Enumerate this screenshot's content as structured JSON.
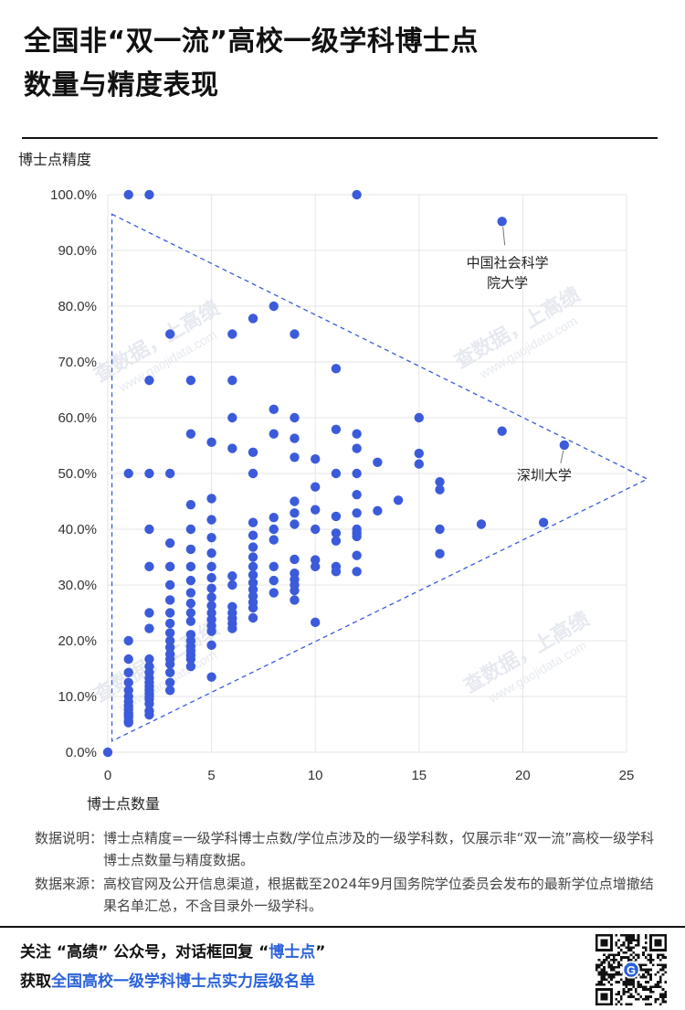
{
  "title": {
    "line1": "全国非“双一流”高校一级学科博士点",
    "line2": "数量与精度表现"
  },
  "notes": {
    "desc_label": "数据说明：",
    "desc_text": "博士点精度=一级学科博士点数/学位点涉及的一级学科数，仅展示非“双一流”高校一级学科博士点数量与精度数据。",
    "source_label": "数据来源：",
    "source_text": "高校官网及公开信息渠道，根据截至2024年9月国务院学位委员会发布的最新学位点增撤结果名单汇总，不含目录外一级学科。"
  },
  "footer": {
    "line1_a": "关注 “高绩” 公众号，对话框回复 “",
    "line1_b": "博士点",
    "line1_c": "”",
    "line2_a": "获取",
    "line2_b": "全国高校一级学科博士点实力层级名单"
  },
  "colors": {
    "point": "#3b5bdb",
    "accent": "#2b62d9",
    "grid": "#e6e6e6",
    "triangle": "#3b5bdb"
  },
  "chart_data": {
    "type": "scatter",
    "xlabel": "博士点数量",
    "ylabel": "博士点精度",
    "xlim": [
      0,
      25
    ],
    "ylim": [
      0,
      100
    ],
    "x_ticks": [
      "0",
      "5",
      "10",
      "15",
      "20",
      "25"
    ],
    "y_ticks": [
      "0.0%",
      "10.0%",
      "20.0%",
      "30.0%",
      "40.0%",
      "50.0%",
      "60.0%",
      "70.0%",
      "80.0%",
      "90.0%",
      "100.0%"
    ],
    "grid": true,
    "watermark": [
      "查数据，上高绩",
      "www.gaojidata.com"
    ],
    "reference_triangle": [
      [
        0.2,
        96.5
      ],
      [
        26,
        49
      ],
      [
        0.2,
        2
      ]
    ],
    "annotations": [
      {
        "text": "中国社会科学院大学",
        "lines": [
          "中国社会科学",
          "院大学"
        ],
        "x": 19,
        "y": 95.2
      },
      {
        "text": "深圳大学",
        "lines": [
          "深圳大学"
        ],
        "x": 22,
        "y": 55.1
      }
    ],
    "series": [
      {
        "points": [
          [
            0,
            0
          ],
          [
            1,
            100
          ],
          [
            1,
            50
          ],
          [
            1,
            20
          ],
          [
            1,
            16.7
          ],
          [
            1,
            14.3
          ],
          [
            1,
            12.5
          ],
          [
            1,
            11.1
          ],
          [
            1,
            10
          ],
          [
            1,
            9.1
          ],
          [
            1,
            8.3
          ],
          [
            1,
            7.7
          ],
          [
            1,
            7.1
          ],
          [
            1,
            6.7
          ],
          [
            1,
            6.3
          ],
          [
            1,
            5.6
          ],
          [
            1,
            5.3
          ],
          [
            2,
            100
          ],
          [
            2,
            66.7
          ],
          [
            2,
            50
          ],
          [
            2,
            40
          ],
          [
            2,
            33.3
          ],
          [
            2,
            25
          ],
          [
            2,
            22.2
          ],
          [
            2,
            16.7
          ],
          [
            2,
            15.4
          ],
          [
            2,
            14.3
          ],
          [
            2,
            13.3
          ],
          [
            2,
            12.5
          ],
          [
            2,
            11.8
          ],
          [
            2,
            11.1
          ],
          [
            2,
            10.5
          ],
          [
            2,
            10
          ],
          [
            2,
            9.5
          ],
          [
            2,
            8.7
          ],
          [
            2,
            7.4
          ],
          [
            2,
            6.7
          ],
          [
            3,
            75
          ],
          [
            3,
            50
          ],
          [
            3,
            37.5
          ],
          [
            3,
            33.3
          ],
          [
            3,
            30
          ],
          [
            3,
            27.3
          ],
          [
            3,
            25
          ],
          [
            3,
            23.1
          ],
          [
            3,
            21.4
          ],
          [
            3,
            20
          ],
          [
            3,
            18.8
          ],
          [
            3,
            17.6
          ],
          [
            3,
            16.7
          ],
          [
            3,
            15.8
          ],
          [
            3,
            14.3
          ],
          [
            3,
            12.5
          ],
          [
            3,
            11.1
          ],
          [
            4,
            66.7
          ],
          [
            4,
            57.1
          ],
          [
            4,
            44.4
          ],
          [
            4,
            40
          ],
          [
            4,
            36.4
          ],
          [
            4,
            33.3
          ],
          [
            4,
            30.8
          ],
          [
            4,
            28.6
          ],
          [
            4,
            26.7
          ],
          [
            4,
            25
          ],
          [
            4,
            23.5
          ],
          [
            4,
            21.1
          ],
          [
            4,
            20
          ],
          [
            4,
            19
          ],
          [
            4,
            18.2
          ],
          [
            4,
            17.4
          ],
          [
            4,
            16.7
          ],
          [
            4,
            15.4
          ],
          [
            5,
            55.6
          ],
          [
            5,
            45.5
          ],
          [
            5,
            41.7
          ],
          [
            5,
            38.5
          ],
          [
            5,
            35.7
          ],
          [
            5,
            33.3
          ],
          [
            5,
            31.3
          ],
          [
            5,
            29.4
          ],
          [
            5,
            27.8
          ],
          [
            5,
            26.3
          ],
          [
            5,
            25
          ],
          [
            5,
            23.8
          ],
          [
            5,
            22.7
          ],
          [
            5,
            21.7
          ],
          [
            5,
            19.2
          ],
          [
            5,
            13.5
          ],
          [
            6,
            75
          ],
          [
            6,
            66.7
          ],
          [
            6,
            60
          ],
          [
            6,
            54.5
          ],
          [
            6,
            31.6
          ],
          [
            6,
            30
          ],
          [
            6,
            26.1
          ],
          [
            6,
            25
          ],
          [
            6,
            24
          ],
          [
            6,
            23.1
          ],
          [
            6,
            22.2
          ],
          [
            7,
            77.8
          ],
          [
            7,
            53.8
          ],
          [
            7,
            50
          ],
          [
            7,
            41.2
          ],
          [
            7,
            38.9
          ],
          [
            7,
            36.8
          ],
          [
            7,
            35
          ],
          [
            7,
            33.3
          ],
          [
            7,
            31.8
          ],
          [
            7,
            30.4
          ],
          [
            7,
            29.2
          ],
          [
            7,
            28
          ],
          [
            7,
            26.9
          ],
          [
            7,
            25.9
          ],
          [
            7,
            24.1
          ],
          [
            8,
            80
          ],
          [
            8,
            61.5
          ],
          [
            8,
            57.1
          ],
          [
            8,
            42.1
          ],
          [
            8,
            40
          ],
          [
            8,
            38.1
          ],
          [
            8,
            33.3
          ],
          [
            8,
            30.8
          ],
          [
            8,
            28.6
          ],
          [
            9,
            75
          ],
          [
            9,
            60
          ],
          [
            9,
            56.3
          ],
          [
            9,
            52.9
          ],
          [
            9,
            45
          ],
          [
            9,
            42.9
          ],
          [
            9,
            40.9
          ],
          [
            9,
            34.6
          ],
          [
            9,
            32.1
          ],
          [
            9,
            31
          ],
          [
            9,
            30
          ],
          [
            9,
            29
          ],
          [
            9,
            27.3
          ],
          [
            10,
            52.6
          ],
          [
            10,
            47.6
          ],
          [
            10,
            43.5
          ],
          [
            10,
            40
          ],
          [
            10,
            34.5
          ],
          [
            10,
            33.3
          ],
          [
            10,
            23.3
          ],
          [
            11,
            68.8
          ],
          [
            11,
            57.9
          ],
          [
            11,
            50
          ],
          [
            11,
            42.3
          ],
          [
            11,
            39.3
          ],
          [
            11,
            37.9
          ],
          [
            11,
            33.3
          ],
          [
            11,
            32.4
          ],
          [
            12,
            100
          ],
          [
            12,
            57.1
          ],
          [
            12,
            54.5
          ],
          [
            12,
            50
          ],
          [
            12,
            46.2
          ],
          [
            12,
            42.9
          ],
          [
            12,
            40
          ],
          [
            12,
            39.3
          ],
          [
            12,
            38.7
          ],
          [
            12,
            35.3
          ],
          [
            12,
            32.4
          ],
          [
            13,
            52
          ],
          [
            13,
            43.3
          ],
          [
            14,
            45.2
          ],
          [
            15,
            60
          ],
          [
            15,
            53.6
          ],
          [
            15,
            51.7
          ],
          [
            16,
            48.5
          ],
          [
            16,
            47.1
          ],
          [
            16,
            40
          ],
          [
            16,
            35.6
          ],
          [
            18,
            40.9
          ],
          [
            19,
            95.2
          ],
          [
            19,
            57.6
          ],
          [
            21,
            41.2
          ],
          [
            22,
            55.1
          ]
        ]
      }
    ]
  }
}
